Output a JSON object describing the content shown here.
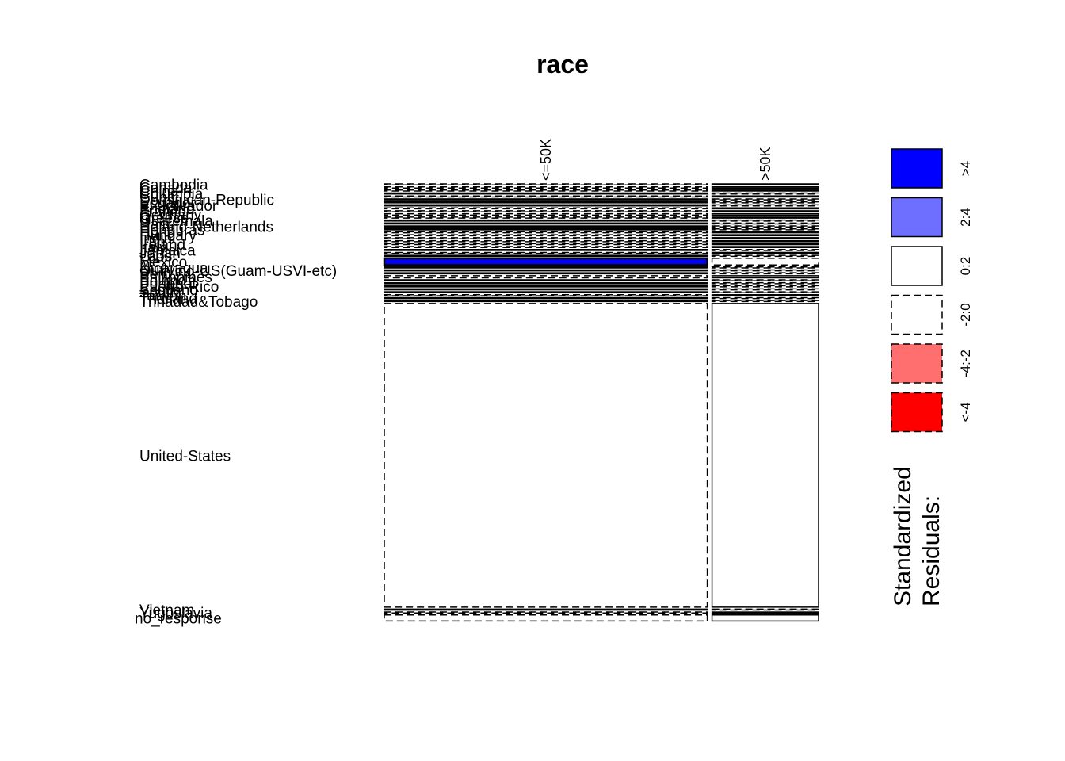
{
  "chart_data": {
    "type": "mosaic",
    "title": "race",
    "columns": [
      "<=50K",
      ">50K"
    ],
    "column_fractions": [
      0.752,
      0.248
    ],
    "rows": [
      {
        "name": "Cambodia",
        "count": 19,
        "residuals": [
          -1,
          1
        ]
      },
      {
        "name": "Canada",
        "count": 121,
        "residuals": [
          -1,
          1
        ]
      },
      {
        "name": "China",
        "count": 75,
        "residuals": [
          -1,
          1
        ]
      },
      {
        "name": "Columbia",
        "count": 59,
        "residuals": [
          1,
          -1
        ]
      },
      {
        "name": "Cuba",
        "count": 95,
        "residuals": [
          -1,
          1
        ]
      },
      {
        "name": "Dominican-Republic",
        "count": 70,
        "residuals": [
          1,
          -1
        ]
      },
      {
        "name": "Ecuador",
        "count": 28,
        "residuals": [
          1,
          -1
        ]
      },
      {
        "name": "El-Salvador",
        "count": 106,
        "residuals": [
          1,
          -1
        ]
      },
      {
        "name": "England",
        "count": 90,
        "residuals": [
          -1,
          1
        ]
      },
      {
        "name": "France",
        "count": 29,
        "residuals": [
          -1,
          1
        ]
      },
      {
        "name": "Germany",
        "count": 137,
        "residuals": [
          -1,
          1
        ]
      },
      {
        "name": "Greece",
        "count": 29,
        "residuals": [
          -1,
          1
        ]
      },
      {
        "name": "Guatemala",
        "count": 64,
        "residuals": [
          1,
          -1
        ]
      },
      {
        "name": "Haiti",
        "count": 44,
        "residuals": [
          1,
          -1
        ]
      },
      {
        "name": "Holand-Netherlands",
        "count": 1,
        "residuals": [
          1,
          -1
        ]
      },
      {
        "name": "Honduras",
        "count": 13,
        "residuals": [
          1,
          -1
        ]
      },
      {
        "name": "Hong",
        "count": 20,
        "residuals": [
          -1,
          1
        ]
      },
      {
        "name": "Hungary",
        "count": 13,
        "residuals": [
          -1,
          1
        ]
      },
      {
        "name": "India",
        "count": 100,
        "residuals": [
          -1,
          1
        ]
      },
      {
        "name": "Iran",
        "count": 43,
        "residuals": [
          -1,
          1
        ]
      },
      {
        "name": "Ireland",
        "count": 24,
        "residuals": [
          -1,
          1
        ]
      },
      {
        "name": "Italy",
        "count": 73,
        "residuals": [
          -1,
          1
        ]
      },
      {
        "name": "Jamaica",
        "count": 81,
        "residuals": [
          1,
          -1
        ]
      },
      {
        "name": "Japan",
        "count": 62,
        "residuals": [
          -1,
          1
        ]
      },
      {
        "name": "Laos",
        "count": 18,
        "residuals": [
          1,
          -1
        ]
      },
      {
        "name": "Mexico",
        "count": 643,
        "residuals": [
          5,
          -1
        ]
      },
      {
        "name": "Nicaragua",
        "count": 34,
        "residuals": [
          1,
          -1
        ]
      },
      {
        "name": "Outlying-US(Guam-USVI-etc)",
        "count": 14,
        "residuals": [
          1,
          -1
        ]
      },
      {
        "name": "Peru",
        "count": 31,
        "residuals": [
          1,
          -1
        ]
      },
      {
        "name": "Philippines",
        "count": 198,
        "residuals": [
          -1,
          1
        ]
      },
      {
        "name": "Poland",
        "count": 60,
        "residuals": [
          1,
          -1
        ]
      },
      {
        "name": "Portugal",
        "count": 37,
        "residuals": [
          1,
          -1
        ]
      },
      {
        "name": "Puerto-Rico",
        "count": 114,
        "residuals": [
          1,
          -1
        ]
      },
      {
        "name": "Scotland",
        "count": 12,
        "residuals": [
          1,
          -1
        ]
      },
      {
        "name": "South",
        "count": 80,
        "residuals": [
          1,
          -1
        ]
      },
      {
        "name": "Taiwan",
        "count": 51,
        "residuals": [
          -1,
          1
        ]
      },
      {
        "name": "Thailand",
        "count": 18,
        "residuals": [
          1,
          -1
        ]
      },
      {
        "name": "Trinadad&Tobago",
        "count": 19,
        "residuals": [
          1,
          -1
        ]
      },
      {
        "name": "United-States",
        "count": 29170,
        "residuals": [
          -1,
          1
        ]
      },
      {
        "name": "Vietnam",
        "count": 67,
        "residuals": [
          1,
          -1
        ]
      },
      {
        "name": "Yugoslavia",
        "count": 16,
        "residuals": [
          -1,
          1
        ]
      },
      {
        "name": "no_response",
        "count": 583,
        "residuals": [
          -1,
          1
        ]
      }
    ],
    "legend": {
      "title_lines": [
        "Standardized",
        "Residuals:"
      ],
      "placement": "right",
      "items": [
        {
          "label": ">4",
          "color": "#0000ff",
          "dashed": false
        },
        {
          "label": "2:4",
          "color": "#6f6fff",
          "dashed": false
        },
        {
          "label": "0:2",
          "color": "#ffffff",
          "dashed": false
        },
        {
          "label": "-2:0",
          "color": "#ffffff",
          "dashed": true
        },
        {
          "label": "-4:-2",
          "color": "#ff6f6f",
          "dashed": true
        },
        {
          "label": "<-4",
          "color": "#ff0000",
          "dashed": true
        }
      ]
    }
  }
}
